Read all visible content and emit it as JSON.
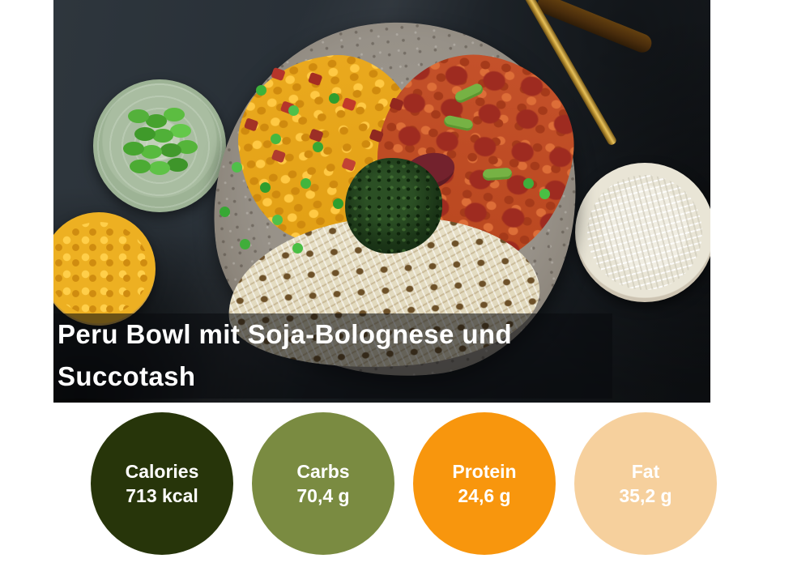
{
  "recipe": {
    "title_line1": "Peru Bowl mit Soja-Bolognese und",
    "title_line2": "Succotash",
    "title_text_color": "#ffffff"
  },
  "nutrition": {
    "text_color": "#ffffff",
    "items": [
      {
        "label": "Calories",
        "value": "713 kcal",
        "color": "#27350a"
      },
      {
        "label": "Carbs",
        "value": "70,4 g",
        "color": "#7a8b41"
      },
      {
        "label": "Protein",
        "value": "24,6 g",
        "color": "#f8960d"
      },
      {
        "label": "Fat",
        "value": "35,2 g",
        "color": "#f6d09d"
      }
    ]
  }
}
